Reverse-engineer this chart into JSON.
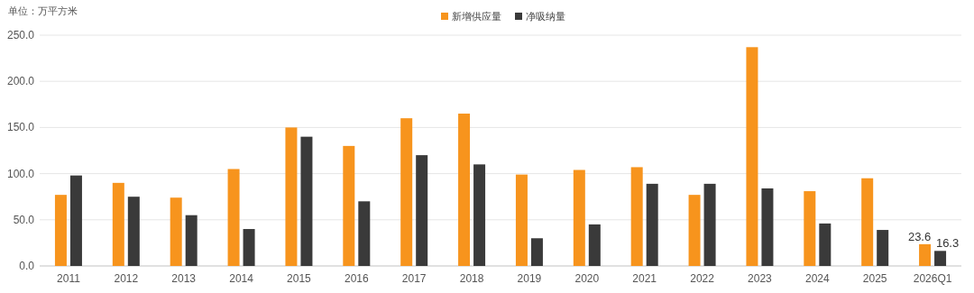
{
  "chart_data": {
    "type": "bar",
    "annotations": [
      "单位：万平方米"
    ],
    "categories": [
      "2011",
      "2012",
      "2013",
      "2014",
      "2015",
      "2016",
      "2017",
      "2018",
      "2019",
      "2020",
      "2021",
      "2022",
      "2023",
      "2024",
      "2025",
      "2026Q1"
    ],
    "series": [
      {
        "name": "新增供应量",
        "color": "#f7941d",
        "values": [
          77,
          90,
          74,
          105,
          150,
          130,
          160,
          165,
          99,
          104,
          107,
          77,
          237,
          81,
          95,
          23.6
        ],
        "value_labels": [
          null,
          null,
          null,
          null,
          null,
          null,
          null,
          null,
          null,
          null,
          null,
          null,
          null,
          null,
          null,
          "23.6"
        ]
      },
      {
        "name": "净吸纳量",
        "color": "#3a3a3a",
        "values": [
          98,
          75,
          55,
          40,
          140,
          70,
          120,
          110,
          30,
          45,
          89,
          89,
          84,
          46,
          39,
          16.3
        ],
        "value_labels": [
          null,
          null,
          null,
          null,
          null,
          null,
          null,
          null,
          null,
          null,
          null,
          null,
          null,
          null,
          null,
          "16.3"
        ]
      }
    ],
    "ylim": [
      0,
      250
    ],
    "yticks": [
      {
        "value": 0,
        "label": "0.0"
      },
      {
        "value": 50,
        "label": "50.0"
      },
      {
        "value": 100,
        "label": "100.0"
      },
      {
        "value": 150,
        "label": "150.0"
      },
      {
        "value": 200,
        "label": "200.0"
      },
      {
        "value": 250,
        "label": "250.0"
      }
    ],
    "grid": "y",
    "legend": "top"
  }
}
